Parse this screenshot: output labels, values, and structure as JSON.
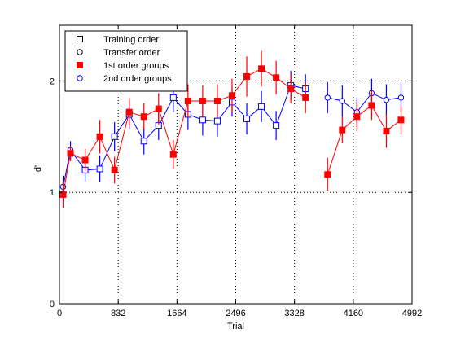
{
  "chart_data": {
    "type": "line",
    "title": "",
    "xlabel": "Trial",
    "ylabel": "d'",
    "xlim": [
      0,
      4992
    ],
    "ylim": [
      0,
      2.5
    ],
    "xticks": [
      0,
      832,
      1664,
      2496,
      3328,
      4160,
      4992
    ],
    "xtick_labels": [
      "0",
      "832",
      "1664",
      "2496",
      "3328",
      "4160",
      "4992"
    ],
    "yticks": [
      0,
      1,
      2
    ],
    "ytick_labels": [
      "0",
      "1",
      "2"
    ],
    "grid": true,
    "grid_style": "dotted",
    "legend_position": "top-left",
    "legend": [
      {
        "label": "Training order",
        "marker": "square",
        "filled": false,
        "color": "#000000"
      },
      {
        "label": "Transfer order",
        "marker": "circle",
        "filled": false,
        "color": "#000000"
      },
      {
        "label": "1st order groups",
        "marker": "square",
        "filled": true,
        "color": "#ff0000"
      },
      {
        "label": "2nd order groups",
        "marker": "circle",
        "filled": false,
        "color": "#0000ff"
      }
    ],
    "series": [
      {
        "name": "1st order groups",
        "color": "#ff0000",
        "marker": "square",
        "filled": true,
        "segments": [
          [
            {
              "x": 52,
              "y": 0.98,
              "err": 0.12
            },
            {
              "x": 156,
              "y": 1.35,
              "err": 0.07
            },
            {
              "x": 364,
              "y": 1.29,
              "err": 0.1
            },
            {
              "x": 572,
              "y": 1.5,
              "err": 0.15
            },
            {
              "x": 780,
              "y": 1.2,
              "err": 0.12
            },
            {
              "x": 988,
              "y": 1.72,
              "err": 0.13
            },
            {
              "x": 1196,
              "y": 1.68,
              "err": 0.12
            },
            {
              "x": 1404,
              "y": 1.75,
              "err": 0.14
            },
            {
              "x": 1612,
              "y": 1.34,
              "err": 0.13
            },
            {
              "x": 1820,
              "y": 1.82,
              "err": 0.15
            },
            {
              "x": 2028,
              "y": 1.82,
              "err": 0.14
            },
            {
              "x": 2236,
              "y": 1.82,
              "err": 0.15
            },
            {
              "x": 2444,
              "y": 1.87,
              "err": 0.15
            },
            {
              "x": 2652,
              "y": 2.04,
              "err": 0.18
            },
            {
              "x": 2860,
              "y": 2.11,
              "err": 0.16
            },
            {
              "x": 3068,
              "y": 2.03,
              "err": 0.15
            },
            {
              "x": 3276,
              "y": 1.93,
              "err": 0.13
            },
            {
              "x": 3484,
              "y": 1.85,
              "err": 0.14
            }
          ],
          [
            {
              "x": 3796,
              "y": 1.16,
              "err": 0.15
            },
            {
              "x": 4004,
              "y": 1.56,
              "err": 0.12
            },
            {
              "x": 4212,
              "y": 1.68,
              "err": 0.13
            },
            {
              "x": 4420,
              "y": 1.78,
              "err": 0.13
            },
            {
              "x": 4628,
              "y": 1.55,
              "err": 0.15
            },
            {
              "x": 4836,
              "y": 1.65,
              "err": 0.13
            }
          ]
        ]
      },
      {
        "name": "2nd order groups",
        "color": "#0000ff",
        "marker": "square-then-circle",
        "filled": false,
        "segments": [
          [
            {
              "x": 52,
              "y": 1.05,
              "err": 0.1,
              "marker": "circle"
            },
            {
              "x": 156,
              "y": 1.38,
              "err": 0.08,
              "marker": "circle"
            },
            {
              "x": 364,
              "y": 1.2,
              "err": 0.1,
              "marker": "square"
            },
            {
              "x": 572,
              "y": 1.21,
              "err": 0.12,
              "marker": "square"
            },
            {
              "x": 780,
              "y": 1.5,
              "err": 0.13,
              "marker": "square"
            },
            {
              "x": 988,
              "y": 1.7,
              "err": 0.13,
              "marker": "square"
            },
            {
              "x": 1196,
              "y": 1.46,
              "err": 0.12,
              "marker": "square"
            },
            {
              "x": 1404,
              "y": 1.6,
              "err": 0.13,
              "marker": "square"
            },
            {
              "x": 1612,
              "y": 1.85,
              "err": 0.13,
              "marker": "square"
            },
            {
              "x": 1820,
              "y": 1.7,
              "err": 0.14,
              "marker": "square"
            },
            {
              "x": 2028,
              "y": 1.65,
              "err": 0.14,
              "marker": "square"
            },
            {
              "x": 2236,
              "y": 1.64,
              "err": 0.14,
              "marker": "square"
            },
            {
              "x": 2444,
              "y": 1.81,
              "err": 0.13,
              "marker": "square"
            },
            {
              "x": 2652,
              "y": 1.66,
              "err": 0.14,
              "marker": "square"
            },
            {
              "x": 2860,
              "y": 1.77,
              "err": 0.14,
              "marker": "square"
            },
            {
              "x": 3068,
              "y": 1.6,
              "err": 0.13,
              "marker": "square"
            },
            {
              "x": 3276,
              "y": 1.96,
              "err": 0.13,
              "marker": "square"
            },
            {
              "x": 3484,
              "y": 1.93,
              "err": 0.13,
              "marker": "square"
            }
          ],
          [
            {
              "x": 3796,
              "y": 1.85,
              "err": 0.14,
              "marker": "circle"
            },
            {
              "x": 4004,
              "y": 1.82,
              "err": 0.14,
              "marker": "circle"
            },
            {
              "x": 4212,
              "y": 1.72,
              "err": 0.13,
              "marker": "circle"
            },
            {
              "x": 4420,
              "y": 1.89,
              "err": 0.13,
              "marker": "circle"
            },
            {
              "x": 4628,
              "y": 1.83,
              "err": 0.14,
              "marker": "circle"
            },
            {
              "x": 4836,
              "y": 1.85,
              "err": 0.13,
              "marker": "circle"
            }
          ]
        ]
      }
    ]
  }
}
